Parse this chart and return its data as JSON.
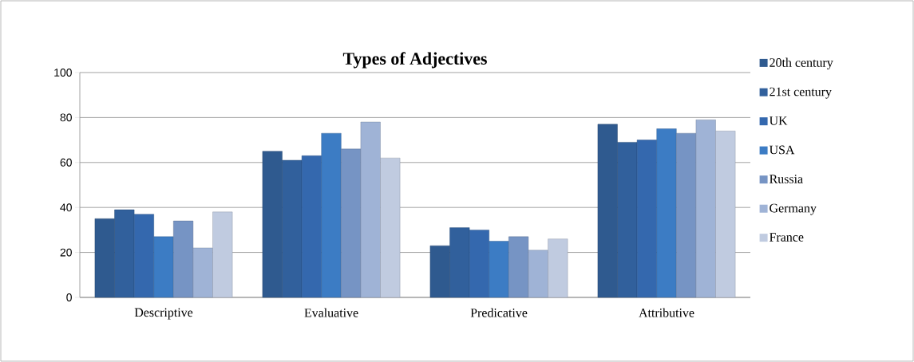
{
  "chart_data": {
    "type": "bar",
    "title": "**Types of Adjectives**",
    "categories": [
      "Descriptive",
      "Evaluative",
      "Predicative",
      "Attributive"
    ],
    "series": [
      {
        "name": "20th century",
        "color": "#2f5a8f",
        "values": [
          35,
          65,
          23,
          77
        ]
      },
      {
        "name": "21st century",
        "color": "#31609c",
        "values": [
          39,
          61,
          31,
          69
        ]
      },
      {
        "name": "UK",
        "color": "#3468ae",
        "values": [
          37,
          63,
          30,
          70
        ]
      },
      {
        "name": "USA",
        "color": "#3c7cc4",
        "values": [
          27,
          73,
          25,
          75
        ]
      },
      {
        "name": "Russia",
        "color": "#7694c4",
        "values": [
          34,
          66,
          27,
          73
        ]
      },
      {
        "name": "Germany",
        "color": "#9fb3d6",
        "values": [
          22,
          78,
          21,
          79
        ]
      },
      {
        "name": "France",
        "color": "#c0cbe0",
        "values": [
          38,
          62,
          26,
          74
        ]
      }
    ],
    "ylim": [
      0,
      100
    ],
    "yticks": [
      0,
      20,
      40,
      60,
      80,
      100
    ],
    "grid": "y",
    "legend": "right"
  }
}
